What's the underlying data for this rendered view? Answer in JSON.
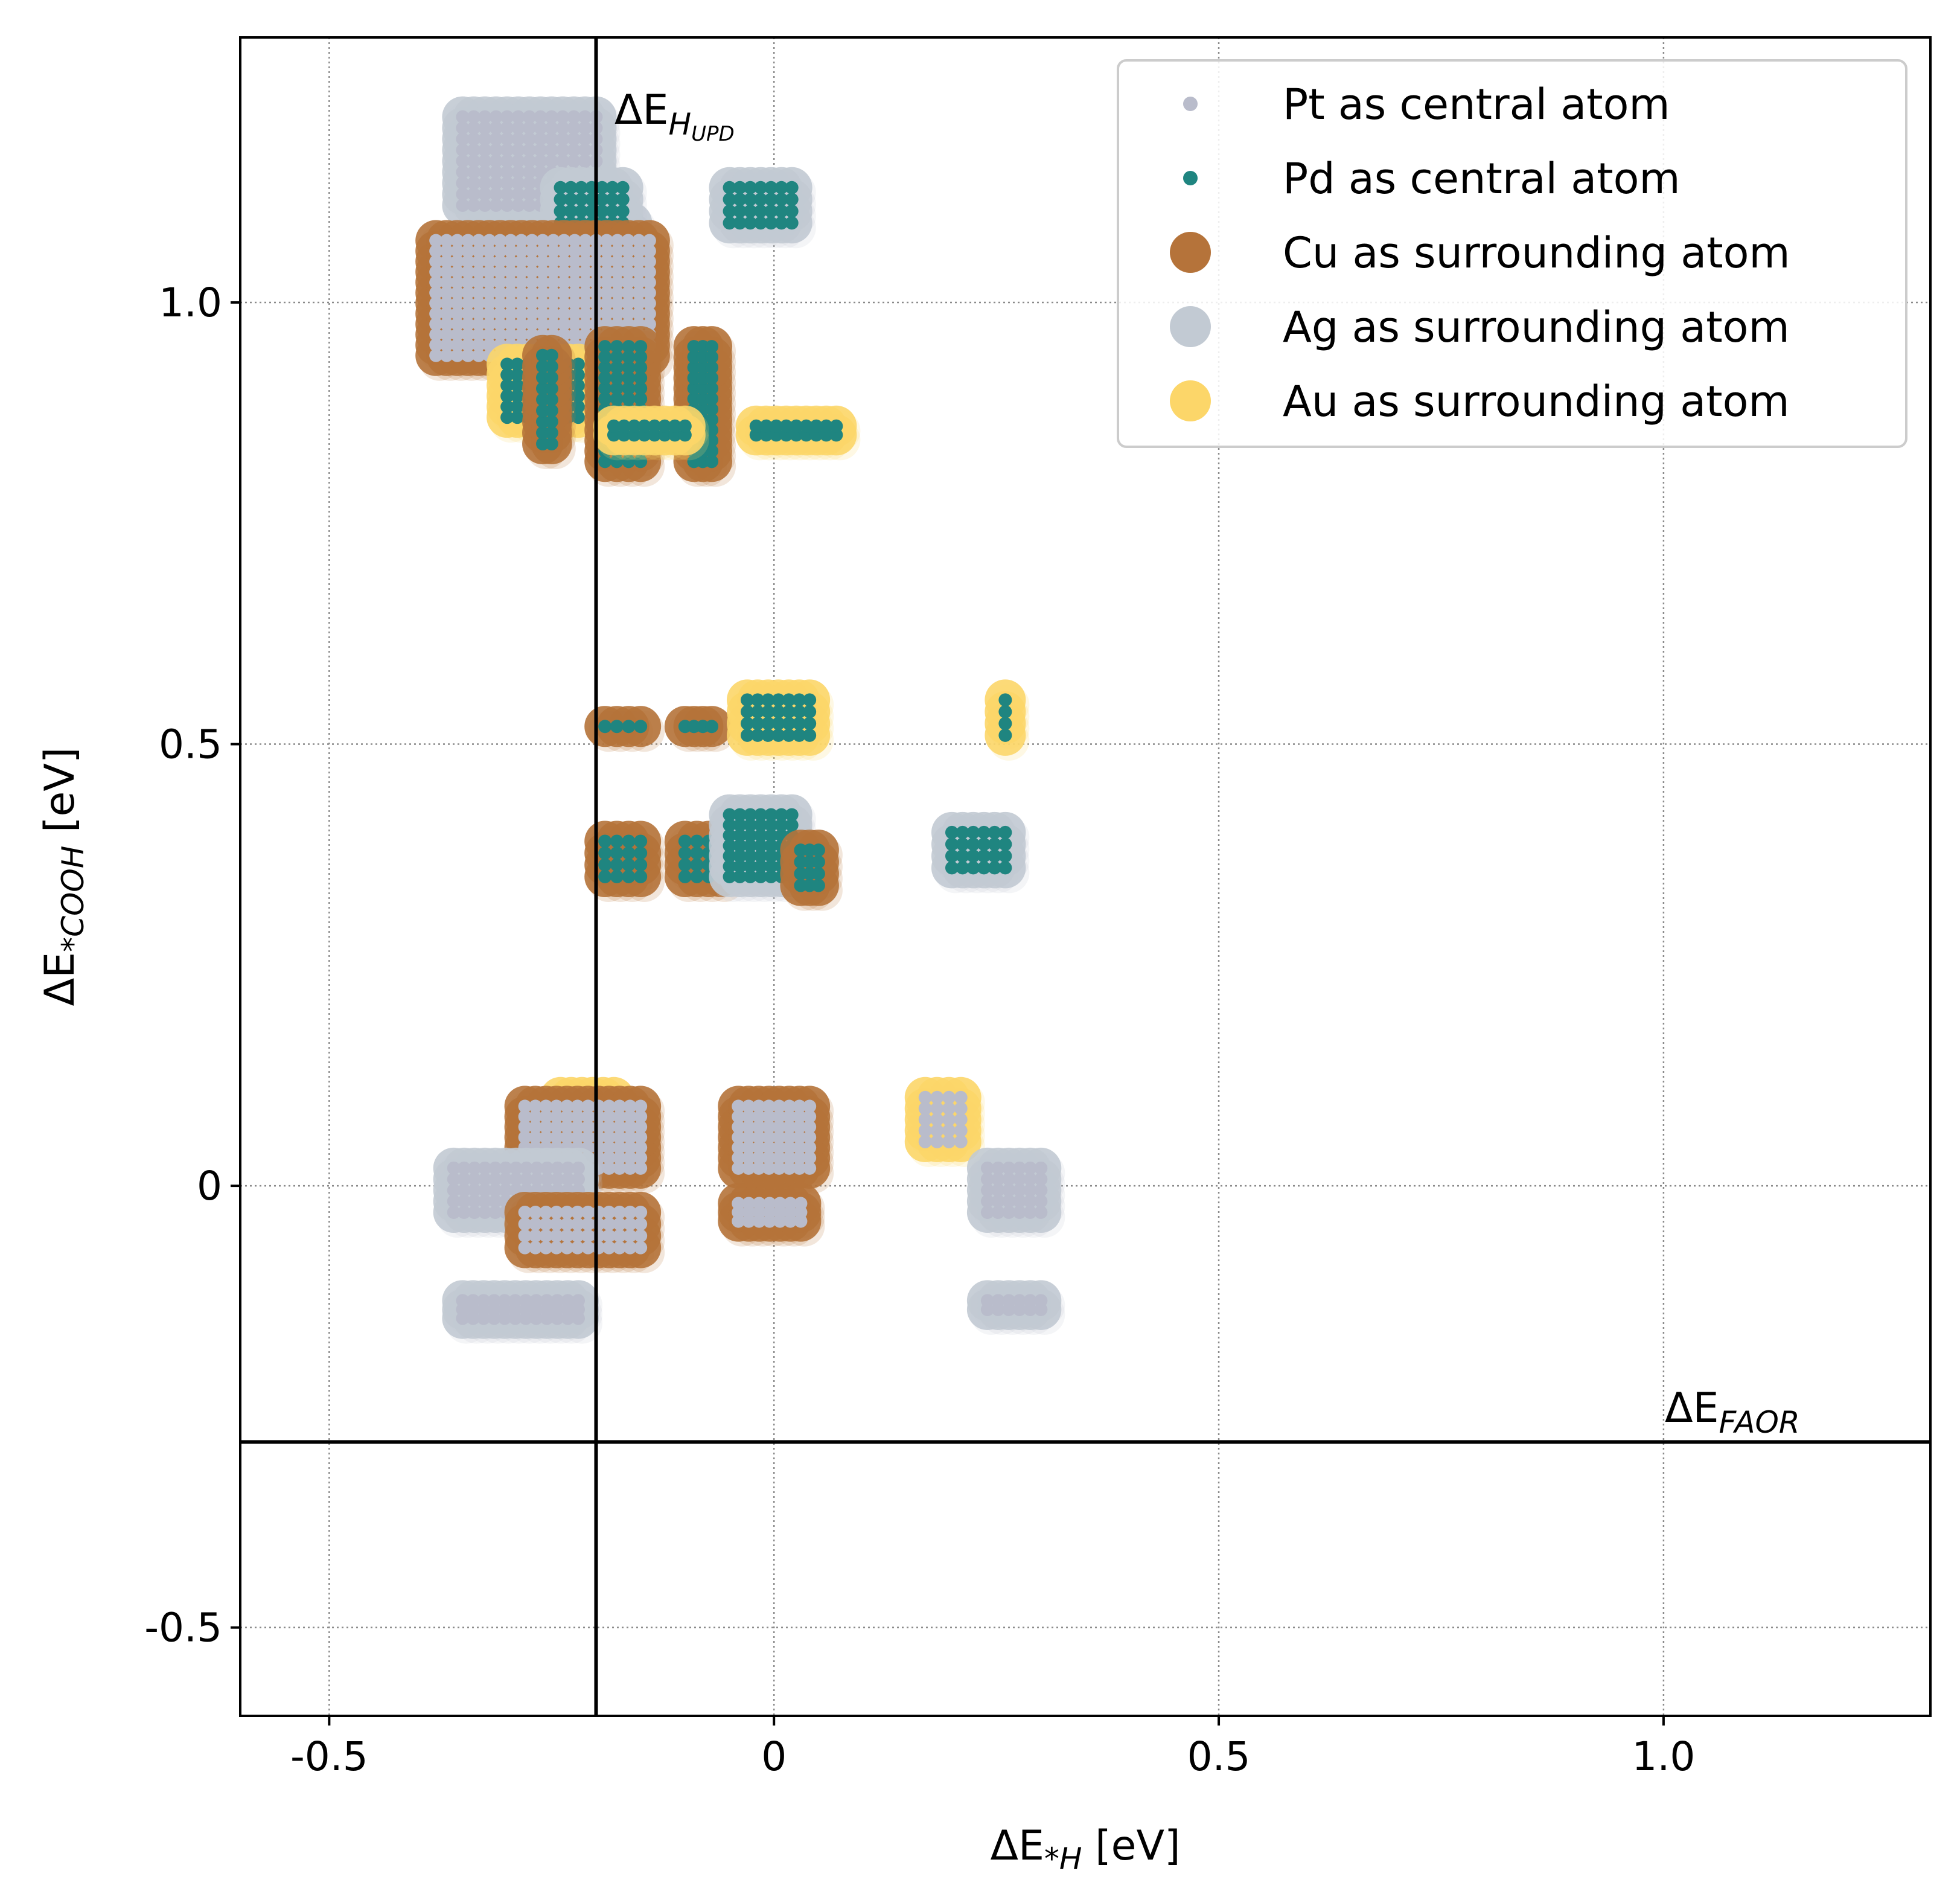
{
  "chart_data": {
    "type": "scatter",
    "title": "",
    "xlabel": {
      "prefix": "ΔE",
      "sub": "*H",
      "unit": " [eV]"
    },
    "ylabel": {
      "prefix": "ΔE",
      "sub": "*COOH",
      "unit": " [eV]"
    },
    "xlim": [
      -0.6,
      1.3
    ],
    "ylim": [
      -0.6,
      1.3
    ],
    "x_ticks": [
      -0.5,
      0,
      0.5,
      1.0
    ],
    "x_tick_labels": [
      "-0.5",
      "0",
      "0.5",
      "1.0"
    ],
    "y_ticks": [
      -0.5,
      0,
      0.5,
      1.0
    ],
    "y_tick_labels": [
      "-0.5",
      "0",
      "0.5",
      "1.0"
    ],
    "grid": true,
    "legend_position": "top-right",
    "reference_lines": [
      {
        "orientation": "vertical",
        "x": -0.2,
        "label_prefix": "ΔE",
        "label_sub": "H",
        "label_subsub": "UPD"
      },
      {
        "orientation": "horizontal",
        "y": -0.29,
        "label_prefix": "ΔE",
        "label_sub": "FAOR"
      }
    ],
    "legend": [
      {
        "label": "Pt as central atom",
        "color": "#b9bccb",
        "marker": "small"
      },
      {
        "label": "Pd as central atom",
        "color": "#1f8580",
        "marker": "small"
      },
      {
        "label": "Cu as surrounding atom",
        "color": "#b5733a",
        "marker": "large"
      },
      {
        "label": "Ag as surrounding atom",
        "color": "#c2cad3",
        "marker": "large"
      },
      {
        "label": "Au as surrounding atom",
        "color": "#fcd669",
        "marker": "large"
      }
    ],
    "clusters": [
      {
        "central": "Pt",
        "surrounding": "Ag",
        "x": [
          -0.35,
          -0.2
        ],
        "y": [
          1.11,
          1.21
        ]
      },
      {
        "central": "Pt",
        "surrounding": "Ag",
        "x": [
          -0.24,
          -0.16
        ],
        "y": [
          1.03,
          1.09
        ]
      },
      {
        "central": "Pd",
        "surrounding": "Ag",
        "x": [
          -0.24,
          -0.17
        ],
        "y": [
          1.09,
          1.13
        ]
      },
      {
        "central": "Pt",
        "surrounding": "Cu",
        "x": [
          -0.38,
          -0.14
        ],
        "y": [
          0.94,
          1.07
        ]
      },
      {
        "central": "Pd",
        "surrounding": "Au",
        "x": [
          -0.3,
          -0.22
        ],
        "y": [
          0.87,
          0.93
        ]
      },
      {
        "central": "Pd",
        "surrounding": "Cu",
        "x": [
          -0.26,
          -0.25
        ],
        "y": [
          0.84,
          0.94
        ]
      },
      {
        "central": "Pd",
        "surrounding": "Cu",
        "x": [
          -0.19,
          -0.15
        ],
        "y": [
          0.82,
          0.95
        ]
      },
      {
        "central": "Pd",
        "surrounding": "Cu",
        "x": [
          -0.09,
          -0.07
        ],
        "y": [
          0.82,
          0.95
        ]
      },
      {
        "central": "Pd",
        "surrounding": "Au",
        "x": [
          -0.18,
          -0.1
        ],
        "y": [
          0.85,
          0.86
        ]
      },
      {
        "central": "Pd",
        "surrounding": "Ag",
        "x": [
          -0.05,
          0.02
        ],
        "y": [
          1.09,
          1.13
        ]
      },
      {
        "central": "Pd",
        "surrounding": "Au",
        "x": [
          -0.02,
          0.07
        ],
        "y": [
          0.85,
          0.86
        ]
      },
      {
        "central": "Pd",
        "surrounding": "Cu",
        "x": [
          -0.19,
          -0.15
        ],
        "y": [
          0.52,
          0.52
        ]
      },
      {
        "central": "Pd",
        "surrounding": "Cu",
        "x": [
          -0.1,
          -0.07
        ],
        "y": [
          0.52,
          0.52
        ]
      },
      {
        "central": "Pd",
        "surrounding": "Au",
        "x": [
          -0.03,
          0.04
        ],
        "y": [
          0.51,
          0.55
        ]
      },
      {
        "central": "Pd",
        "surrounding": "Au",
        "x": [
          0.26,
          0.26
        ],
        "y": [
          0.51,
          0.55
        ]
      },
      {
        "central": "Pd",
        "surrounding": "Cu",
        "x": [
          -0.19,
          -0.15
        ],
        "y": [
          0.35,
          0.39
        ]
      },
      {
        "central": "Pd",
        "surrounding": "Cu",
        "x": [
          -0.1,
          -0.06
        ],
        "y": [
          0.35,
          0.39
        ]
      },
      {
        "central": "Pd",
        "surrounding": "Ag",
        "x": [
          -0.05,
          0.02
        ],
        "y": [
          0.35,
          0.42
        ]
      },
      {
        "central": "Pd",
        "surrounding": "Cu",
        "x": [
          0.03,
          0.05
        ],
        "y": [
          0.34,
          0.38
        ]
      },
      {
        "central": "Pd",
        "surrounding": "Ag",
        "x": [
          0.2,
          0.26
        ],
        "y": [
          0.36,
          0.4
        ]
      },
      {
        "central": "Pt",
        "surrounding": "Au",
        "x": [
          -0.24,
          -0.18
        ],
        "y": [
          0.03,
          0.1
        ]
      },
      {
        "central": "Pt",
        "surrounding": "Cu",
        "x": [
          -0.28,
          -0.15
        ],
        "y": [
          0.02,
          0.09
        ]
      },
      {
        "central": "Pt",
        "surrounding": "Cu",
        "x": [
          -0.04,
          0.04
        ],
        "y": [
          0.02,
          0.09
        ]
      },
      {
        "central": "Pt",
        "surrounding": "Au",
        "x": [
          0.17,
          0.21
        ],
        "y": [
          0.05,
          0.1
        ]
      },
      {
        "central": "Pt",
        "surrounding": "Ag",
        "x": [
          -0.36,
          -0.22
        ],
        "y": [
          -0.03,
          0.02
        ]
      },
      {
        "central": "Pt",
        "surrounding": "Cu",
        "x": [
          -0.28,
          -0.15
        ],
        "y": [
          -0.07,
          -0.03
        ]
      },
      {
        "central": "Pt",
        "surrounding": "Cu",
        "x": [
          -0.04,
          0.03
        ],
        "y": [
          -0.04,
          -0.02
        ]
      },
      {
        "central": "Pt",
        "surrounding": "Ag",
        "x": [
          0.24,
          0.3
        ],
        "y": [
          -0.03,
          0.02
        ]
      },
      {
        "central": "Pt",
        "surrounding": "Ag",
        "x": [
          -0.35,
          -0.22
        ],
        "y": [
          -0.15,
          -0.13
        ]
      },
      {
        "central": "Pt",
        "surrounding": "Ag",
        "x": [
          0.24,
          0.3
        ],
        "y": [
          -0.14,
          -0.13
        ]
      }
    ]
  }
}
